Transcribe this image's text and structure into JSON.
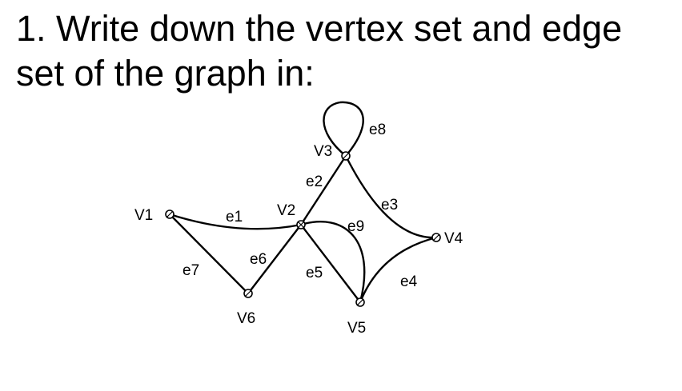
{
  "question": {
    "line1": "1. Write down the vertex set and edge",
    "line2": "set of the graph in:"
  },
  "graph": {
    "vertices": [
      {
        "id": "V1",
        "label": "V1"
      },
      {
        "id": "V2",
        "label": "V2"
      },
      {
        "id": "V3",
        "label": "V3"
      },
      {
        "id": "V4",
        "label": "V4"
      },
      {
        "id": "V5",
        "label": "V5"
      },
      {
        "id": "V6",
        "label": "V6"
      }
    ],
    "edges": [
      {
        "id": "e1",
        "label": "e1",
        "from": "V1",
        "to": "V2"
      },
      {
        "id": "e2",
        "label": "e2",
        "from": "V2",
        "to": "V3"
      },
      {
        "id": "e3",
        "label": "e3",
        "from": "V3",
        "to": "V4"
      },
      {
        "id": "e4",
        "label": "e4",
        "from": "V4",
        "to": "V5"
      },
      {
        "id": "e5",
        "label": "e5",
        "from": "V2",
        "to": "V5"
      },
      {
        "id": "e6",
        "label": "e6",
        "from": "V2",
        "to": "V6"
      },
      {
        "id": "e7",
        "label": "e7",
        "from": "V1",
        "to": "V6"
      },
      {
        "id": "e8",
        "label": "e8",
        "from": "V3",
        "to": "V3"
      },
      {
        "id": "e9",
        "label": "e9",
        "from": "V2",
        "to": "V5"
      }
    ]
  }
}
